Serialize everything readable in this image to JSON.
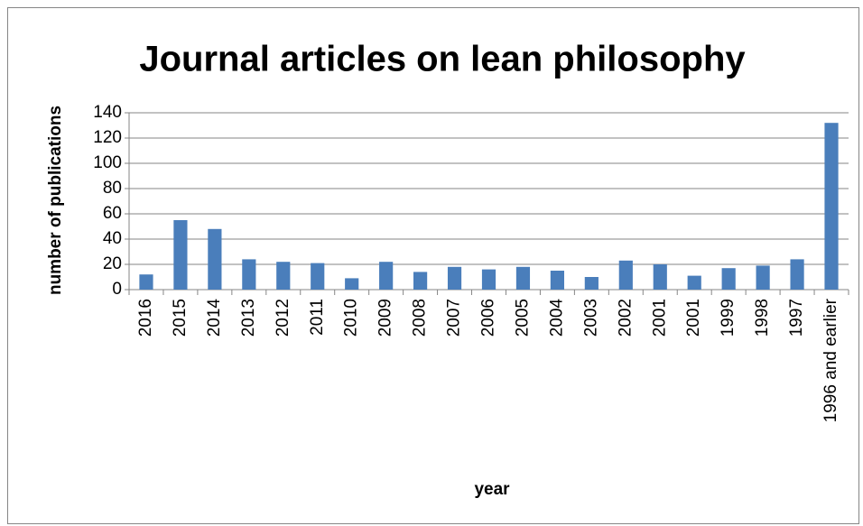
{
  "chart_data": {
    "type": "bar",
    "title": "Journal articles on lean philosophy",
    "x_label": "year",
    "y_label": "number of publications",
    "categories": [
      "2016",
      "2015",
      "2014",
      "2013",
      "2012",
      "2011",
      "2010",
      "2009",
      "2008",
      "2007",
      "2006",
      "2005",
      "2004",
      "2003",
      "2002",
      "2001",
      "2001",
      "1999",
      "1998",
      "1997",
      "1996 and earlier"
    ],
    "values": [
      12,
      55,
      48,
      24,
      22,
      21,
      9,
      22,
      14,
      18,
      16,
      18,
      15,
      10,
      23,
      20,
      11,
      17,
      19,
      24,
      132
    ],
    "color": "#4a7ebb",
    "ylim": [
      0,
      140
    ],
    "yticks": [
      0,
      20,
      40,
      60,
      80,
      100,
      120,
      140
    ],
    "grid": true
  }
}
